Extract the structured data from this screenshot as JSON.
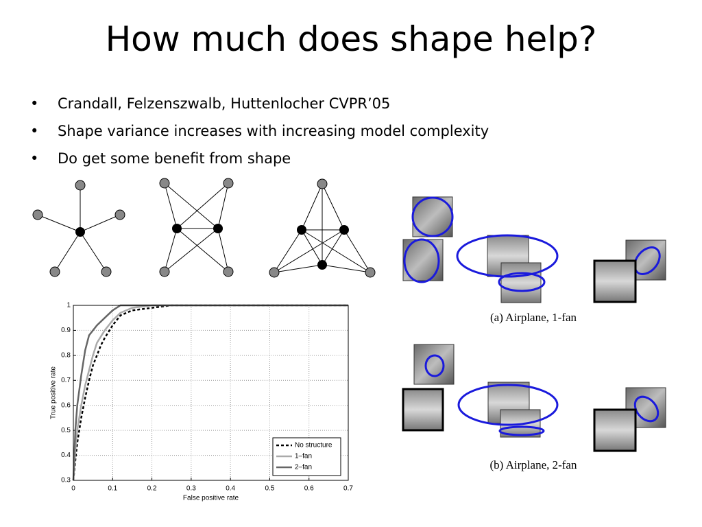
{
  "title": "How much does shape help?",
  "bullets": [
    "Crandall, Felzenszwalb, Huttenlocher CVPR’05",
    "Shape variance increases with increasing model complexity",
    "Do get some benefit from shape"
  ],
  "captions": [
    "(a) Airplane, 1-fan",
    "(b) Airplane, 2-fan"
  ],
  "chart_data": {
    "type": "line",
    "xlabel": "False positive rate",
    "ylabel": "True positive rate",
    "xlim": [
      0,
      0.7
    ],
    "xticks": [
      0,
      0.1,
      0.2,
      0.3,
      0.4,
      0.5,
      0.6,
      0.7
    ],
    "ylim": [
      0.3,
      1
    ],
    "yticks": [
      0.3,
      0.4,
      0.5,
      0.6,
      0.7,
      0.8,
      0.9,
      1
    ],
    "grid": true,
    "legend": "lower right",
    "series": [
      {
        "name": "No structure",
        "color": "#000000",
        "dash": true,
        "x": [
          0,
          0.005,
          0.01,
          0.02,
          0.03,
          0.04,
          0.05,
          0.06,
          0.07,
          0.08,
          0.1,
          0.12,
          0.15,
          0.2,
          0.25,
          0.7
        ],
        "values": [
          0.3,
          0.38,
          0.45,
          0.55,
          0.63,
          0.7,
          0.76,
          0.8,
          0.84,
          0.87,
          0.92,
          0.96,
          0.98,
          0.99,
          1,
          1
        ]
      },
      {
        "name": "1–fan",
        "color": "#aaaaaa",
        "dash": false,
        "x": [
          0,
          0.005,
          0.01,
          0.02,
          0.03,
          0.04,
          0.05,
          0.06,
          0.08,
          0.1,
          0.12,
          0.15,
          0.2,
          0.7
        ],
        "values": [
          0.3,
          0.42,
          0.5,
          0.6,
          0.68,
          0.74,
          0.8,
          0.85,
          0.9,
          0.94,
          0.97,
          0.99,
          1,
          1
        ]
      },
      {
        "name": "2–fan",
        "color": "#666666",
        "dash": false,
        "x": [
          0,
          0.005,
          0.01,
          0.02,
          0.03,
          0.04,
          0.06,
          0.08,
          0.1,
          0.12,
          0.7
        ],
        "values": [
          0.3,
          0.5,
          0.6,
          0.72,
          0.82,
          0.88,
          0.92,
          0.95,
          0.98,
          1,
          1
        ]
      }
    ]
  }
}
